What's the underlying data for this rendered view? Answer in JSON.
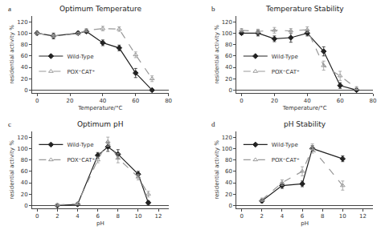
{
  "chart_data": [
    {
      "type": "line",
      "title": "Optimum Temperature",
      "annotations": [
        "a"
      ],
      "x_label": "Temperature/°C",
      "y_label": "residential activity %",
      "xlim": [
        -3,
        80
      ],
      "ylim": [
        -5,
        130
      ],
      "xticks": [
        0,
        20,
        40,
        60,
        80
      ],
      "yticks": [
        0,
        20,
        40,
        60,
        80,
        100,
        120
      ],
      "grid": false,
      "legend": "center left",
      "series": [
        {
          "name": "Wild-Type",
          "color": "#222222",
          "marker": "diamond",
          "line_style": "solid",
          "x": [
            0,
            10,
            25,
            30,
            40,
            50,
            60,
            70
          ],
          "values": [
            100,
            95,
            100,
            103,
            83,
            74,
            30,
            0
          ],
          "error": [
            3,
            5,
            3,
            3,
            5,
            5,
            8,
            1
          ]
        },
        {
          "name": "POX⁼CAT⁺",
          "color": "#999999",
          "marker": "triangle-up-open",
          "line_style": "dashed",
          "x": [
            0,
            10,
            25,
            30,
            40,
            50,
            60,
            70
          ],
          "values": [
            100,
            95,
            99,
            105,
            108,
            107,
            62,
            20
          ],
          "error": [
            2,
            3,
            2,
            3,
            4,
            4,
            5,
            5
          ]
        }
      ]
    },
    {
      "type": "line",
      "title": "Temperature Stability",
      "annotations": [
        "b"
      ],
      "x_label": "Temperature/°C",
      "y_label": "residential activity %",
      "xlim": [
        -3,
        80
      ],
      "ylim": [
        -5,
        130
      ],
      "xticks": [
        0,
        20,
        40,
        60,
        80
      ],
      "yticks": [
        0,
        20,
        40,
        60,
        80,
        100,
        120
      ],
      "grid": false,
      "legend": "center left",
      "series": [
        {
          "name": "Wild-Type",
          "color": "#222222",
          "marker": "diamond",
          "line_style": "solid",
          "x": [
            0,
            10,
            20,
            30,
            40,
            50,
            60,
            70
          ],
          "values": [
            100,
            100,
            90,
            92,
            100,
            68,
            8,
            0
          ],
          "error": [
            3,
            5,
            5,
            8,
            5,
            8,
            5,
            1
          ]
        },
        {
          "name": "POX⁼CAT⁺",
          "color": "#999999",
          "marker": "triangle-up-open",
          "line_style": "dashed",
          "x": [
            0,
            10,
            20,
            30,
            40,
            50,
            60,
            70
          ],
          "values": [
            105,
            103,
            105,
            104,
            106,
            43,
            25,
            3
          ],
          "error": [
            3,
            4,
            5,
            4,
            5,
            8,
            8,
            3
          ]
        }
      ]
    },
    {
      "type": "line",
      "title": "Optimum pH",
      "annotations": [
        "c"
      ],
      "x_label": "pH",
      "y_label": "residential activity %",
      "xlim": [
        -0.5,
        13
      ],
      "ylim": [
        -5,
        130
      ],
      "xticks": [
        0,
        2,
        4,
        6,
        8,
        10,
        12
      ],
      "yticks": [
        0,
        20,
        40,
        60,
        80,
        100,
        120
      ],
      "grid": false,
      "legend": "upper left",
      "series": [
        {
          "name": "Wild-Type",
          "color": "#222222",
          "marker": "diamond",
          "line_style": "solid",
          "x": [
            2,
            4,
            6,
            7,
            8,
            10,
            11
          ],
          "values": [
            0,
            2,
            88,
            103,
            90,
            55,
            5
          ],
          "error": [
            2,
            2,
            5,
            8,
            8,
            5,
            3
          ]
        },
        {
          "name": "POX⁼CAT⁺",
          "color": "#999999",
          "marker": "triangle-up-open",
          "line_style": "dashed",
          "x": [
            2,
            4,
            6,
            7,
            8,
            10,
            11
          ],
          "values": [
            1,
            3,
            80,
            112,
            83,
            50,
            20
          ],
          "error": [
            2,
            2,
            5,
            8,
            8,
            5,
            5
          ]
        }
      ]
    },
    {
      "type": "line",
      "title": "pH Stability",
      "annotations": [
        "d"
      ],
      "x_label": "pH",
      "y_label": "residential activity %",
      "xlim": [
        -0.5,
        13
      ],
      "ylim": [
        -5,
        130
      ],
      "xticks": [
        0,
        2,
        4,
        6,
        8,
        10,
        12
      ],
      "yticks": [
        0,
        20,
        40,
        60,
        80,
        100,
        120
      ],
      "grid": false,
      "legend": "upper left",
      "series": [
        {
          "name": "Wild-Type",
          "color": "#222222",
          "marker": "diamond",
          "line_style": "solid",
          "x": [
            2,
            4,
            6,
            7,
            10
          ],
          "values": [
            8,
            35,
            38,
            100,
            82
          ],
          "error": [
            3,
            5,
            5,
            5,
            5
          ]
        },
        {
          "name": "POX⁼CAT⁺",
          "color": "#999999",
          "marker": "triangle-up-open",
          "line_style": "dashed",
          "x": [
            2,
            4,
            6,
            7,
            10
          ],
          "values": [
            10,
            40,
            60,
            100,
            35
          ],
          "error": [
            3,
            5,
            8,
            8,
            8
          ]
        }
      ]
    }
  ]
}
